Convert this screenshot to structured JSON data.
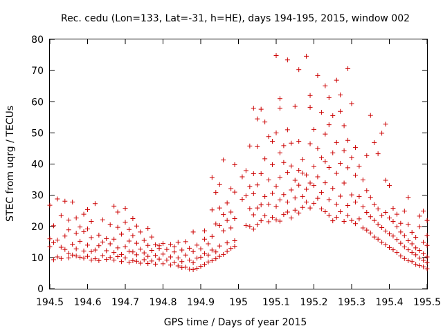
{
  "chart_data": {
    "type": "scatter",
    "title": "Rec. cedu (Lon=133, Lat=-31, h=HE), days 194-195, 2015, window 002",
    "xlabel": "GPS time / Days of year 2015",
    "ylabel": "STEC from uqrg / TECUs",
    "xlim": [
      194.5,
      195.5
    ],
    "ylim": [
      0,
      80
    ],
    "x_tick_labels": [
      "194.5",
      "194.6",
      "194.7",
      "194.8",
      "194.9",
      "195",
      "195.1",
      "195.2",
      "195.3",
      "195.4",
      "195.5"
    ],
    "y_tick_labels": [
      "0",
      "10",
      "20",
      "30",
      "40",
      "50",
      "60",
      "70",
      "80"
    ],
    "marker": "+",
    "color": "#cc0000",
    "grid": false,
    "legend": false,
    "points": [
      [
        194.5,
        13.5
      ],
      [
        194.5,
        16.0
      ],
      [
        194.5,
        26.8
      ],
      [
        194.51,
        9.3
      ],
      [
        194.51,
        14.8
      ],
      [
        194.51,
        20.2
      ],
      [
        194.52,
        10.2
      ],
      [
        194.52,
        15.6
      ],
      [
        194.52,
        28.8
      ],
      [
        194.53,
        9.7
      ],
      [
        194.53,
        13.3
      ],
      [
        194.53,
        23.5
      ],
      [
        194.54,
        12.6
      ],
      [
        194.54,
        16.9
      ],
      [
        194.54,
        28.1
      ],
      [
        194.55,
        9.9
      ],
      [
        194.55,
        11.4
      ],
      [
        194.55,
        18.9
      ],
      [
        194.55,
        22.0
      ],
      [
        194.56,
        10.8
      ],
      [
        194.56,
        14.3
      ],
      [
        194.56,
        27.8
      ],
      [
        194.57,
        10.5
      ],
      [
        194.57,
        12.8
      ],
      [
        194.57,
        17.8
      ],
      [
        194.57,
        22.7
      ],
      [
        194.58,
        10.1
      ],
      [
        194.58,
        15.2
      ],
      [
        194.58,
        19.8
      ],
      [
        194.59,
        9.8
      ],
      [
        194.59,
        12.1
      ],
      [
        194.59,
        18.3
      ],
      [
        194.59,
        23.9
      ],
      [
        194.6,
        10.4
      ],
      [
        194.6,
        14.0
      ],
      [
        194.6,
        19.2
      ],
      [
        194.6,
        25.4
      ],
      [
        194.61,
        9.2
      ],
      [
        194.61,
        11.9
      ],
      [
        194.61,
        16.4
      ],
      [
        194.61,
        21.6
      ],
      [
        194.62,
        9.6
      ],
      [
        194.62,
        12.4
      ],
      [
        194.62,
        27.3
      ],
      [
        194.63,
        9.0
      ],
      [
        194.63,
        13.8
      ],
      [
        194.63,
        17.2
      ],
      [
        194.64,
        10.6
      ],
      [
        194.64,
        15.0
      ],
      [
        194.64,
        22.1
      ],
      [
        194.65,
        9.4
      ],
      [
        194.65,
        12.2
      ],
      [
        194.65,
        16.1
      ],
      [
        194.66,
        10.0
      ],
      [
        194.66,
        14.4
      ],
      [
        194.66,
        20.5
      ],
      [
        194.67,
        9.2
      ],
      [
        194.67,
        11.6
      ],
      [
        194.67,
        15.9
      ],
      [
        194.67,
        26.5
      ],
      [
        194.68,
        10.3
      ],
      [
        194.68,
        13.1
      ],
      [
        194.68,
        19.7
      ],
      [
        194.68,
        24.6
      ],
      [
        194.69,
        8.7
      ],
      [
        194.69,
        11.0
      ],
      [
        194.69,
        17.5
      ],
      [
        194.7,
        9.9
      ],
      [
        194.7,
        13.5
      ],
      [
        194.7,
        21.3
      ],
      [
        194.7,
        25.8
      ],
      [
        194.71,
        8.5
      ],
      [
        194.71,
        12.0
      ],
      [
        194.71,
        15.3
      ],
      [
        194.71,
        19.0
      ],
      [
        194.72,
        9.0
      ],
      [
        194.72,
        11.8
      ],
      [
        194.72,
        17.0
      ],
      [
        194.72,
        22.5
      ],
      [
        194.73,
        8.8
      ],
      [
        194.73,
        10.9
      ],
      [
        194.73,
        14.6
      ],
      [
        194.73,
        20.1
      ],
      [
        194.74,
        8.2
      ],
      [
        194.74,
        12.7
      ],
      [
        194.74,
        18.2
      ],
      [
        194.75,
        9.3
      ],
      [
        194.75,
        11.5
      ],
      [
        194.75,
        15.5
      ],
      [
        194.76,
        8.1
      ],
      [
        194.76,
        10.4
      ],
      [
        194.76,
        13.9
      ],
      [
        194.76,
        19.4
      ],
      [
        194.77,
        8.9
      ],
      [
        194.77,
        12.3
      ],
      [
        194.77,
        16.6
      ],
      [
        194.78,
        7.9
      ],
      [
        194.78,
        10.7
      ],
      [
        194.78,
        14.1
      ],
      [
        194.79,
        9.5
      ],
      [
        194.79,
        12.9
      ],
      [
        194.79,
        13.8
      ],
      [
        194.8,
        8.0
      ],
      [
        194.8,
        11.1
      ],
      [
        194.8,
        14.5
      ],
      [
        194.81,
        9.2
      ],
      [
        194.81,
        12.6
      ],
      [
        194.82,
        7.6
      ],
      [
        194.82,
        10.2
      ],
      [
        194.82,
        14.2
      ],
      [
        194.83,
        8.4
      ],
      [
        194.83,
        11.8
      ],
      [
        194.83,
        13.5
      ],
      [
        194.84,
        7.3
      ],
      [
        194.84,
        9.9
      ],
      [
        194.84,
        14.9
      ],
      [
        194.85,
        6.8
      ],
      [
        194.85,
        8.7
      ],
      [
        194.85,
        12.4
      ],
      [
        194.86,
        6.9
      ],
      [
        194.86,
        10.8
      ],
      [
        194.86,
        15.1
      ],
      [
        194.87,
        6.3
      ],
      [
        194.87,
        9.2
      ],
      [
        194.87,
        13.0
      ],
      [
        194.88,
        6.1
      ],
      [
        194.88,
        8.3
      ],
      [
        194.88,
        11.9
      ],
      [
        194.88,
        18.2
      ],
      [
        194.89,
        6.5
      ],
      [
        194.89,
        9.8
      ],
      [
        194.89,
        14.0
      ],
      [
        194.9,
        7.2
      ],
      [
        194.9,
        10.1
      ],
      [
        194.9,
        12.8
      ],
      [
        194.91,
        7.8
      ],
      [
        194.91,
        11.3
      ],
      [
        194.91,
        15.9
      ],
      [
        194.91,
        18.6
      ],
      [
        194.92,
        8.6
      ],
      [
        194.92,
        10.8
      ],
      [
        194.92,
        14.4
      ],
      [
        194.93,
        9.0
      ],
      [
        194.93,
        12.4
      ],
      [
        194.93,
        16.8
      ],
      [
        194.93,
        25.3
      ],
      [
        194.93,
        35.7
      ],
      [
        194.94,
        9.6
      ],
      [
        194.94,
        11.8
      ],
      [
        194.94,
        20.8
      ],
      [
        194.94,
        30.9
      ],
      [
        194.95,
        10.4
      ],
      [
        194.95,
        13.7
      ],
      [
        194.95,
        20.3
      ],
      [
        194.95,
        25.9
      ],
      [
        194.95,
        33.4
      ],
      [
        194.96,
        11.0
      ],
      [
        194.96,
        18.6
      ],
      [
        194.96,
        23.8
      ],
      [
        194.96,
        41.3
      ],
      [
        194.97,
        12.0
      ],
      [
        194.97,
        14.7
      ],
      [
        194.97,
        21.9
      ],
      [
        194.97,
        27.5
      ],
      [
        194.98,
        12.9
      ],
      [
        194.98,
        19.5
      ],
      [
        194.98,
        24.6
      ],
      [
        194.98,
        32.1
      ],
      [
        194.99,
        13.6
      ],
      [
        194.99,
        15.4
      ],
      [
        194.99,
        22.5
      ],
      [
        194.99,
        31.0
      ],
      [
        194.99,
        39.8
      ],
      [
        195.01,
        28.7
      ],
      [
        195.01,
        35.9
      ],
      [
        195.02,
        20.3
      ],
      [
        195.02,
        29.8
      ],
      [
        195.02,
        37.9
      ],
      [
        195.03,
        20.0
      ],
      [
        195.03,
        25.7
      ],
      [
        195.03,
        32.7
      ],
      [
        195.03,
        45.8
      ],
      [
        195.04,
        19.1
      ],
      [
        195.04,
        23.7
      ],
      [
        195.04,
        30.5
      ],
      [
        195.04,
        36.9
      ],
      [
        195.04,
        57.9
      ],
      [
        195.05,
        20.5
      ],
      [
        195.05,
        25.9
      ],
      [
        195.05,
        33.3
      ],
      [
        195.05,
        45.6
      ],
      [
        195.05,
        54.5
      ],
      [
        195.06,
        21.8
      ],
      [
        195.06,
        26.9
      ],
      [
        195.06,
        36.9
      ],
      [
        195.06,
        57.6
      ],
      [
        195.07,
        23.4
      ],
      [
        195.07,
        29.6
      ],
      [
        195.07,
        41.7
      ],
      [
        195.07,
        53.5
      ],
      [
        195.08,
        21.5
      ],
      [
        195.08,
        27.1
      ],
      [
        195.08,
        34.9
      ],
      [
        195.08,
        48.8
      ],
      [
        195.09,
        22.9
      ],
      [
        195.09,
        30.6
      ],
      [
        195.09,
        39.8
      ],
      [
        195.09,
        47.3
      ],
      [
        195.1,
        22.1
      ],
      [
        195.1,
        26.4
      ],
      [
        195.1,
        32.9
      ],
      [
        195.1,
        50.0
      ],
      [
        195.1,
        74.8
      ],
      [
        195.11,
        21.7
      ],
      [
        195.11,
        28.5
      ],
      [
        195.11,
        35.7
      ],
      [
        195.11,
        43.6
      ],
      [
        195.11,
        57.9
      ],
      [
        195.11,
        61.0
      ],
      [
        195.12,
        23.8
      ],
      [
        195.12,
        30.2
      ],
      [
        195.12,
        40.5
      ],
      [
        195.12,
        45.9
      ],
      [
        195.13,
        24.6
      ],
      [
        195.13,
        27.8
      ],
      [
        195.13,
        37.3
      ],
      [
        195.13,
        51.0
      ],
      [
        195.13,
        73.4
      ],
      [
        195.14,
        22.7
      ],
      [
        195.14,
        31.7
      ],
      [
        195.14,
        39.4
      ],
      [
        195.14,
        46.7
      ],
      [
        195.15,
        25.2
      ],
      [
        195.15,
        29.1
      ],
      [
        195.15,
        34.8
      ],
      [
        195.15,
        58.5
      ],
      [
        195.16,
        24.3
      ],
      [
        195.16,
        33.2
      ],
      [
        195.16,
        38.0
      ],
      [
        195.16,
        47.3
      ],
      [
        195.16,
        70.3
      ],
      [
        195.17,
        26.1
      ],
      [
        195.17,
        29.6
      ],
      [
        195.17,
        37.1
      ],
      [
        195.17,
        41.5
      ],
      [
        195.18,
        27.8
      ],
      [
        195.18,
        31.9
      ],
      [
        195.18,
        36.5
      ],
      [
        195.18,
        74.6
      ],
      [
        195.19,
        25.9
      ],
      [
        195.19,
        33.9
      ],
      [
        195.19,
        46.5
      ],
      [
        195.19,
        58.2
      ],
      [
        195.19,
        62.0
      ],
      [
        195.2,
        27.4
      ],
      [
        195.2,
        33.1
      ],
      [
        195.2,
        39.2
      ],
      [
        195.2,
        51.1
      ],
      [
        195.21,
        29.0
      ],
      [
        195.21,
        35.9
      ],
      [
        195.21,
        45.0
      ],
      [
        195.21,
        68.4
      ],
      [
        195.22,
        25.6
      ],
      [
        195.22,
        30.9
      ],
      [
        195.22,
        42.0
      ],
      [
        195.22,
        56.6
      ],
      [
        195.23,
        24.7
      ],
      [
        195.23,
        34.0
      ],
      [
        195.23,
        40.8
      ],
      [
        195.23,
        49.6
      ],
      [
        195.23,
        65.1
      ],
      [
        195.24,
        23.6
      ],
      [
        195.24,
        28.6
      ],
      [
        195.24,
        38.9
      ],
      [
        195.24,
        52.6
      ],
      [
        195.24,
        61.3
      ],
      [
        195.25,
        21.8
      ],
      [
        195.25,
        32.2
      ],
      [
        195.25,
        43.6
      ],
      [
        195.25,
        55.5
      ],
      [
        195.26,
        22.9
      ],
      [
        195.26,
        27.1
      ],
      [
        195.26,
        37.0
      ],
      [
        195.26,
        46.9
      ],
      [
        195.26,
        66.9
      ],
      [
        195.27,
        24.7
      ],
      [
        195.27,
        29.7
      ],
      [
        195.27,
        40.2
      ],
      [
        195.27,
        56.9
      ],
      [
        195.27,
        62.2
      ],
      [
        195.28,
        21.6
      ],
      [
        195.28,
        33.9
      ],
      [
        195.28,
        44.3
      ],
      [
        195.28,
        52.3
      ],
      [
        195.29,
        23.5
      ],
      [
        195.29,
        26.7
      ],
      [
        195.29,
        38.8
      ],
      [
        195.29,
        47.6
      ],
      [
        195.29,
        70.6
      ],
      [
        195.3,
        21.9
      ],
      [
        195.3,
        30.1
      ],
      [
        195.3,
        42.0
      ],
      [
        195.3,
        59.4
      ],
      [
        195.31,
        20.9
      ],
      [
        195.31,
        27.8
      ],
      [
        195.31,
        36.4
      ],
      [
        195.31,
        45.3
      ],
      [
        195.32,
        22.4
      ],
      [
        195.32,
        29.6
      ],
      [
        195.32,
        39.3
      ],
      [
        195.33,
        19.5
      ],
      [
        195.33,
        26.3
      ],
      [
        195.33,
        34.9
      ],
      [
        195.34,
        18.8
      ],
      [
        195.34,
        24.5
      ],
      [
        195.34,
        31.5
      ],
      [
        195.34,
        42.7
      ],
      [
        195.35,
        17.9
      ],
      [
        195.35,
        23.1
      ],
      [
        195.35,
        29.3
      ],
      [
        195.35,
        55.6
      ],
      [
        195.36,
        16.6
      ],
      [
        195.36,
        21.9
      ],
      [
        195.36,
        27.0
      ],
      [
        195.36,
        46.9
      ],
      [
        195.37,
        15.9
      ],
      [
        195.37,
        20.7
      ],
      [
        195.37,
        25.6
      ],
      [
        195.37,
        43.3
      ],
      [
        195.38,
        14.9
      ],
      [
        195.38,
        19.6
      ],
      [
        195.38,
        23.5
      ],
      [
        195.38,
        49.9
      ],
      [
        195.39,
        14.1
      ],
      [
        195.39,
        18.5
      ],
      [
        195.39,
        24.5
      ],
      [
        195.39,
        34.8
      ],
      [
        195.39,
        52.8
      ],
      [
        195.4,
        13.2
      ],
      [
        195.4,
        17.6
      ],
      [
        195.4,
        22.7
      ],
      [
        195.4,
        33.1
      ],
      [
        195.41,
        12.5
      ],
      [
        195.41,
        16.9
      ],
      [
        195.41,
        21.6
      ],
      [
        195.41,
        25.8
      ],
      [
        195.42,
        11.6
      ],
      [
        195.42,
        15.8
      ],
      [
        195.42,
        19.9
      ],
      [
        195.42,
        23.9
      ],
      [
        195.43,
        10.5
      ],
      [
        195.43,
        14.6
      ],
      [
        195.43,
        18.2
      ],
      [
        195.43,
        21.0
      ],
      [
        195.44,
        9.7
      ],
      [
        195.44,
        13.4
      ],
      [
        195.44,
        17.0
      ],
      [
        195.44,
        24.9
      ],
      [
        195.45,
        9.0
      ],
      [
        195.45,
        12.5
      ],
      [
        195.45,
        15.4
      ],
      [
        195.45,
        20.6
      ],
      [
        195.45,
        29.3
      ],
      [
        195.46,
        8.7
      ],
      [
        195.46,
        11.6
      ],
      [
        195.46,
        14.4
      ],
      [
        195.46,
        18.1
      ],
      [
        195.47,
        7.8
      ],
      [
        195.47,
        10.9
      ],
      [
        195.47,
        13.1
      ],
      [
        195.47,
        16.5
      ],
      [
        195.48,
        7.4
      ],
      [
        195.48,
        9.8
      ],
      [
        195.48,
        12.3
      ],
      [
        195.48,
        19.9
      ],
      [
        195.48,
        23.3
      ],
      [
        195.49,
        7.0
      ],
      [
        195.49,
        9.1
      ],
      [
        195.49,
        11.2
      ],
      [
        195.49,
        14.9
      ],
      [
        195.49,
        24.9
      ],
      [
        195.5,
        6.4
      ],
      [
        195.5,
        8.3
      ],
      [
        195.5,
        10.2
      ],
      [
        195.5,
        13.9
      ],
      [
        195.5,
        17.1
      ],
      [
        195.5,
        21.9
      ]
    ]
  }
}
